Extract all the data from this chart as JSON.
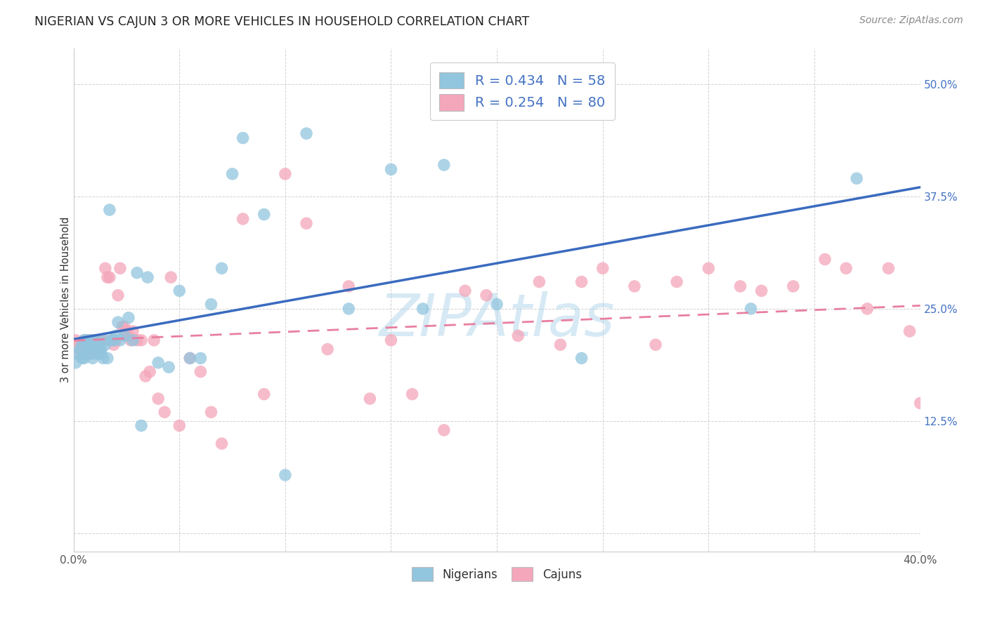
{
  "title": "NIGERIAN VS CAJUN 3 OR MORE VEHICLES IN HOUSEHOLD CORRELATION CHART",
  "source": "Source: ZipAtlas.com",
  "ylabel": "3 or more Vehicles in Household",
  "xlim": [
    0.0,
    0.4
  ],
  "ylim": [
    -0.02,
    0.54
  ],
  "yticks": [
    0.0,
    0.125,
    0.25,
    0.375,
    0.5
  ],
  "ytick_labels": [
    "",
    "12.5%",
    "25.0%",
    "37.5%",
    "50.0%"
  ],
  "xticks": [
    0.0,
    0.05,
    0.1,
    0.15,
    0.2,
    0.25,
    0.3,
    0.35,
    0.4
  ],
  "xtick_labels": [
    "0.0%",
    "",
    "",
    "",
    "",
    "",
    "",
    "",
    "40.0%"
  ],
  "nigerian_color": "#92c5de",
  "cajun_color": "#f4a6ba",
  "nigerian_line_color": "#3a6bbf",
  "cajun_line_color": "#e87fa0",
  "background_color": "#ffffff",
  "grid_color": "#cccccc",
  "watermark": "ZIPAtlas",
  "nigerian_x": [
    0.001,
    0.002,
    0.003,
    0.004,
    0.004,
    0.005,
    0.005,
    0.006,
    0.006,
    0.007,
    0.007,
    0.008,
    0.008,
    0.009,
    0.009,
    0.01,
    0.01,
    0.011,
    0.011,
    0.012,
    0.013,
    0.013,
    0.014,
    0.015,
    0.015,
    0.016,
    0.017,
    0.018,
    0.019,
    0.02,
    0.021,
    0.022,
    0.024,
    0.026,
    0.028,
    0.03,
    0.032,
    0.035,
    0.04,
    0.045,
    0.05,
    0.055,
    0.06,
    0.065,
    0.07,
    0.075,
    0.08,
    0.09,
    0.1,
    0.11,
    0.13,
    0.15,
    0.165,
    0.175,
    0.2,
    0.24,
    0.32,
    0.37
  ],
  "nigerian_y": [
    0.19,
    0.2,
    0.205,
    0.195,
    0.21,
    0.195,
    0.215,
    0.2,
    0.215,
    0.205,
    0.21,
    0.2,
    0.215,
    0.195,
    0.21,
    0.215,
    0.2,
    0.205,
    0.215,
    0.2,
    0.205,
    0.2,
    0.195,
    0.215,
    0.21,
    0.195,
    0.36,
    0.215,
    0.215,
    0.22,
    0.235,
    0.215,
    0.22,
    0.24,
    0.215,
    0.29,
    0.12,
    0.285,
    0.19,
    0.185,
    0.27,
    0.195,
    0.195,
    0.255,
    0.295,
    0.4,
    0.44,
    0.355,
    0.065,
    0.445,
    0.25,
    0.405,
    0.25,
    0.41,
    0.255,
    0.195,
    0.25,
    0.395
  ],
  "cajun_x": [
    0.001,
    0.002,
    0.003,
    0.004,
    0.005,
    0.005,
    0.006,
    0.006,
    0.007,
    0.007,
    0.008,
    0.008,
    0.009,
    0.009,
    0.01,
    0.01,
    0.011,
    0.011,
    0.012,
    0.012,
    0.013,
    0.014,
    0.015,
    0.016,
    0.017,
    0.018,
    0.019,
    0.02,
    0.021,
    0.022,
    0.023,
    0.024,
    0.025,
    0.026,
    0.027,
    0.028,
    0.03,
    0.032,
    0.034,
    0.036,
    0.038,
    0.04,
    0.043,
    0.046,
    0.05,
    0.055,
    0.06,
    0.065,
    0.07,
    0.08,
    0.09,
    0.1,
    0.11,
    0.12,
    0.13,
    0.14,
    0.15,
    0.16,
    0.175,
    0.185,
    0.195,
    0.21,
    0.22,
    0.23,
    0.24,
    0.25,
    0.265,
    0.275,
    0.285,
    0.3,
    0.315,
    0.325,
    0.34,
    0.355,
    0.365,
    0.375,
    0.385,
    0.395,
    0.4,
    0.405
  ],
  "cajun_y": [
    0.215,
    0.21,
    0.2,
    0.205,
    0.2,
    0.215,
    0.215,
    0.205,
    0.215,
    0.21,
    0.205,
    0.2,
    0.215,
    0.205,
    0.21,
    0.215,
    0.205,
    0.215,
    0.21,
    0.205,
    0.215,
    0.215,
    0.295,
    0.285,
    0.285,
    0.215,
    0.21,
    0.215,
    0.265,
    0.295,
    0.23,
    0.23,
    0.225,
    0.22,
    0.215,
    0.225,
    0.215,
    0.215,
    0.175,
    0.18,
    0.215,
    0.15,
    0.135,
    0.285,
    0.12,
    0.195,
    0.18,
    0.135,
    0.1,
    0.35,
    0.155,
    0.4,
    0.345,
    0.205,
    0.275,
    0.15,
    0.215,
    0.155,
    0.115,
    0.27,
    0.265,
    0.22,
    0.28,
    0.21,
    0.28,
    0.295,
    0.275,
    0.21,
    0.28,
    0.295,
    0.275,
    0.27,
    0.275,
    0.305,
    0.295,
    0.25,
    0.295,
    0.225,
    0.145,
    0.11
  ]
}
